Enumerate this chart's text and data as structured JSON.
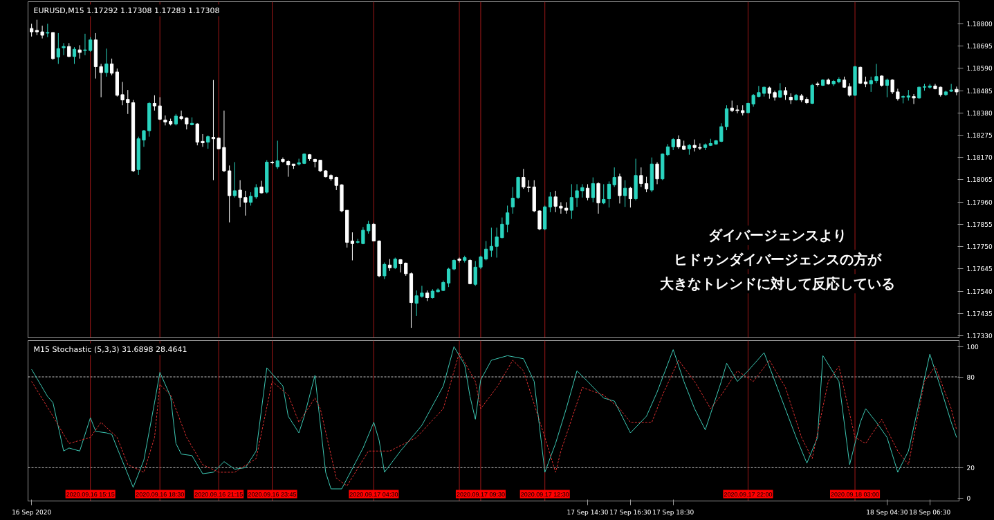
{
  "chart_data": [
    {
      "type": "candlestick",
      "title": "EURUSD,M15  1.17292 1.17308 1.17283 1.17308",
      "x": [
        "2020-09-16T12:30",
        "2020-09-16T12:45",
        "2020-09-16T13:00",
        "2020-09-16T13:15",
        "2020-09-16T13:30",
        "2020-09-16T13:45",
        "2020-09-16T14:00",
        "2020-09-16T14:15",
        "2020-09-16T14:30",
        "2020-09-16T14:45",
        "2020-09-16T15:00",
        "2020-09-16T15:15",
        "2020-09-16T15:30",
        "2020-09-16T15:45",
        "2020-09-16T16:00",
        "2020-09-16T16:15",
        "2020-09-16T16:30",
        "2020-09-16T16:45",
        "2020-09-16T17:00",
        "2020-09-16T17:15",
        "2020-09-16T17:30",
        "2020-09-16T17:45",
        "2020-09-16T18:00",
        "2020-09-16T18:15",
        "2020-09-16T18:30",
        "2020-09-16T18:45",
        "2020-09-16T19:00",
        "2020-09-16T19:15",
        "2020-09-16T19:30",
        "2020-09-16T19:45",
        "2020-09-16T20:00",
        "2020-09-16T20:15",
        "2020-09-16T20:30",
        "2020-09-16T20:45",
        "2020-09-16T21:00",
        "2020-09-16T21:15",
        "2020-09-16T21:30",
        "2020-09-16T21:45",
        "2020-09-16T22:00",
        "2020-09-16T22:15",
        "2020-09-16T22:30",
        "2020-09-16T22:45",
        "2020-09-16T23:00",
        "2020-09-16T23:15",
        "2020-09-16T23:30",
        "2020-09-16T23:45",
        "2020-09-17T00:00",
        "2020-09-17T00:15",
        "2020-09-17T00:30",
        "2020-09-17T00:45",
        "2020-09-17T01:00",
        "2020-09-17T01:15",
        "2020-09-17T01:30",
        "2020-09-17T01:45",
        "2020-09-17T02:00",
        "2020-09-17T02:15",
        "2020-09-17T02:30",
        "2020-09-17T02:45",
        "2020-09-17T03:00",
        "2020-09-17T03:15",
        "2020-09-17T03:30",
        "2020-09-17T03:45",
        "2020-09-17T04:00",
        "2020-09-17T04:15",
        "2020-09-17T04:30",
        "2020-09-17T04:45",
        "2020-09-17T05:00",
        "2020-09-17T05:15",
        "2020-09-17T05:30",
        "2020-09-17T05:45",
        "2020-09-17T06:00",
        "2020-09-17T06:15",
        "2020-09-17T06:30",
        "2020-09-17T06:45",
        "2020-09-17T07:00",
        "2020-09-17T07:15",
        "2020-09-17T07:30",
        "2020-09-17T07:45",
        "2020-09-17T08:00",
        "2020-09-17T08:15",
        "2020-09-17T08:30",
        "2020-09-17T08:45",
        "2020-09-17T09:00",
        "2020-09-17T09:15",
        "2020-09-17T09:30",
        "2020-09-17T09:45",
        "2020-09-17T10:00",
        "2020-09-17T10:15",
        "2020-09-17T10:30",
        "2020-09-17T10:45",
        "2020-09-17T11:00",
        "2020-09-17T11:15",
        "2020-09-17T11:30",
        "2020-09-17T11:45",
        "2020-09-17T12:00",
        "2020-09-17T12:15",
        "2020-09-17T12:30",
        "2020-09-17T12:45",
        "2020-09-17T13:00",
        "2020-09-17T13:15",
        "2020-09-17T13:30",
        "2020-09-17T13:45",
        "2020-09-17T14:00",
        "2020-09-17T14:15",
        "2020-09-17T14:30",
        "2020-09-17T14:45",
        "2020-09-17T15:00",
        "2020-09-17T15:15",
        "2020-09-17T15:30",
        "2020-09-17T15:45",
        "2020-09-17T16:00",
        "2020-09-17T16:15",
        "2020-09-17T16:30",
        "2020-09-17T16:45",
        "2020-09-17T17:00",
        "2020-09-17T17:15",
        "2020-09-17T17:30",
        "2020-09-17T17:45",
        "2020-09-17T18:00",
        "2020-09-17T18:15",
        "2020-09-17T18:30",
        "2020-09-17T18:45",
        "2020-09-17T19:00",
        "2020-09-17T19:15",
        "2020-09-17T19:30",
        "2020-09-17T19:45",
        "2020-09-17T20:00",
        "2020-09-17T20:15",
        "2020-09-17T20:30",
        "2020-09-17T20:45",
        "2020-09-17T21:00",
        "2020-09-17T21:15",
        "2020-09-17T21:30",
        "2020-09-17T21:45",
        "2020-09-17T22:00",
        "2020-09-17T22:15",
        "2020-09-17T22:30",
        "2020-09-17T22:45",
        "2020-09-17T23:00",
        "2020-09-17T23:15",
        "2020-09-17T23:30",
        "2020-09-17T23:45",
        "2020-09-18T00:00",
        "2020-09-18T00:15",
        "2020-09-18T00:30",
        "2020-09-18T00:45",
        "2020-09-18T01:00",
        "2020-09-18T01:15",
        "2020-09-18T01:30",
        "2020-09-18T01:45",
        "2020-09-18T02:00",
        "2020-09-18T02:15",
        "2020-09-18T02:30",
        "2020-09-18T02:45",
        "2020-09-18T03:00",
        "2020-09-18T03:15",
        "2020-09-18T03:30",
        "2020-09-18T03:45",
        "2020-09-18T04:00",
        "2020-09-18T04:15",
        "2020-09-18T04:30",
        "2020-09-18T04:45",
        "2020-09-18T05:00",
        "2020-09-18T05:15",
        "2020-09-18T05:30",
        "2020-09-18T05:45",
        "2020-09-18T06:00",
        "2020-09-18T06:15",
        "2020-09-18T06:30",
        "2020-09-18T06:45",
        "2020-09-18T07:00",
        "2020-09-18T07:15",
        "2020-09-18T07:30",
        "2020-09-18T07:45"
      ],
      "ohlc": [
        [
          1.18778,
          1.188,
          1.1874,
          1.18762
        ],
        [
          1.18769,
          1.18819,
          1.18746,
          1.18762
        ],
        [
          1.18762,
          1.18791,
          1.18731,
          1.18746
        ],
        [
          1.18756,
          1.188,
          1.18737,
          1.18759
        ],
        [
          1.18759,
          1.18759,
          1.1863,
          1.18636
        ],
        [
          1.18643,
          1.18756,
          1.18611,
          1.18683
        ],
        [
          1.18687,
          1.18709,
          1.18652,
          1.18693
        ],
        [
          1.18693,
          1.18709,
          1.18643,
          1.18646
        ],
        [
          1.18646,
          1.1869,
          1.18611,
          1.1868
        ],
        [
          1.18677,
          1.18699,
          1.18636,
          1.18665
        ],
        [
          1.18674,
          1.18753,
          1.18652,
          1.18677
        ],
        [
          1.18674,
          1.18737,
          1.18668,
          1.18724
        ],
        [
          1.18724,
          1.18756,
          1.18542,
          1.18598
        ],
        [
          1.18598,
          1.18611,
          1.18454,
          1.1857
        ],
        [
          1.1857,
          1.18683,
          1.18551,
          1.18611
        ],
        [
          1.18611,
          1.18636,
          1.18557,
          1.18567
        ],
        [
          1.18573,
          1.18589,
          1.18457,
          1.18463
        ],
        [
          1.18466,
          1.18526,
          1.18416,
          1.18441
        ],
        [
          1.18444,
          1.18488,
          1.18375,
          1.18428
        ],
        [
          1.18428,
          1.18441,
          1.18101,
          1.18107
        ],
        [
          1.18113,
          1.18268,
          1.18088,
          1.18258
        ],
        [
          1.18252,
          1.18299,
          1.1822,
          1.18296
        ],
        [
          1.18296,
          1.18431,
          1.18268,
          1.18425
        ],
        [
          1.18425,
          1.18463,
          1.18391,
          1.18413
        ],
        [
          1.18413,
          1.18454,
          1.18346,
          1.1835
        ],
        [
          1.18346,
          1.18368,
          1.18321,
          1.18337
        ],
        [
          1.1834,
          1.18353,
          1.18321,
          1.18328
        ],
        [
          1.18328,
          1.18375,
          1.18321,
          1.18365
        ],
        [
          1.18362,
          1.18391,
          1.18346,
          1.18353
        ],
        [
          1.18356,
          1.18359,
          1.18302,
          1.18328
        ],
        [
          1.18324,
          1.18359,
          1.18321,
          1.18331
        ],
        [
          1.18328,
          1.18331,
          1.18227,
          1.18242
        ],
        [
          1.18246,
          1.1828,
          1.1822,
          1.18239
        ],
        [
          1.18242,
          1.18274,
          1.18211,
          1.18268
        ],
        [
          1.18265,
          1.18535,
          1.18063,
          1.18258
        ],
        [
          1.18261,
          1.18265,
          1.18208,
          1.18211
        ],
        [
          1.18217,
          1.18391,
          1.18101,
          1.18107
        ],
        [
          1.18107,
          1.18132,
          1.17864,
          1.1799
        ],
        [
          1.1799,
          1.18148,
          1.17981,
          1.18013
        ],
        [
          1.18016,
          1.18063,
          1.17937,
          1.17981
        ],
        [
          1.17981,
          1.18013,
          1.17896,
          1.17959
        ],
        [
          1.17959,
          1.18006,
          1.17943,
          1.17987
        ],
        [
          1.17984,
          1.18044,
          1.17975,
          1.18028
        ],
        [
          1.18031,
          1.1806,
          1.18,
          1.18003
        ],
        [
          1.18006,
          1.18157,
          1.18,
          1.18148
        ],
        [
          1.18148,
          1.18154,
          1.18139,
          1.18145
        ],
        [
          1.18126,
          1.18249,
          1.18116,
          1.18154
        ],
        [
          1.18161,
          1.1817,
          1.18145,
          1.18151
        ],
        [
          1.18151,
          1.18157,
          1.18079,
          1.18135
        ],
        [
          1.18139,
          1.18139,
          1.18116,
          1.18132
        ],
        [
          1.18139,
          1.18164,
          1.18132,
          1.18145
        ],
        [
          1.18142,
          1.18189,
          1.18139,
          1.18186
        ],
        [
          1.18183,
          1.18186,
          1.18154,
          1.18164
        ],
        [
          1.18161,
          1.18164,
          1.18123,
          1.18151
        ],
        [
          1.18157,
          1.18157,
          1.18101,
          1.18107
        ],
        [
          1.18107,
          1.1811,
          1.18076,
          1.18079
        ],
        [
          1.18085,
          1.18091,
          1.1806,
          1.18069
        ],
        [
          1.18076,
          1.18079,
          1.18016,
          1.18038
        ],
        [
          1.18041,
          1.18044,
          1.17912,
          1.17918
        ],
        [
          1.17921,
          1.17921,
          1.17745,
          1.1777
        ],
        [
          1.17776,
          1.17817,
          1.17685,
          1.17764
        ],
        [
          1.1777,
          1.17786,
          1.17764,
          1.17773
        ],
        [
          1.17764,
          1.17842,
          1.17761,
          1.17827
        ],
        [
          1.17824,
          1.17871,
          1.17811,
          1.17855
        ],
        [
          1.17855,
          1.17861,
          1.17776,
          1.17776
        ],
        [
          1.17776,
          1.17779,
          1.17606,
          1.17612
        ],
        [
          1.17612,
          1.17675,
          1.17597,
          1.17666
        ],
        [
          1.17663,
          1.17691,
          1.17635,
          1.1765
        ],
        [
          1.1765,
          1.17698,
          1.17644,
          1.17691
        ],
        [
          1.17688,
          1.17691,
          1.17628,
          1.17669
        ],
        [
          1.17672,
          1.17675,
          1.17612,
          1.17622
        ],
        [
          1.17622,
          1.17628,
          1.17367,
          1.17486
        ],
        [
          1.17483,
          1.17543,
          1.17423,
          1.17518
        ],
        [
          1.17515,
          1.17565,
          1.17509,
          1.17531
        ],
        [
          1.17531,
          1.17543,
          1.17493,
          1.17509
        ],
        [
          1.17509,
          1.17549,
          1.17505,
          1.1754
        ],
        [
          1.17537,
          1.17553,
          1.17534,
          1.17546
        ],
        [
          1.17543,
          1.1759,
          1.1754,
          1.17581
        ],
        [
          1.17578,
          1.1765,
          1.17559,
          1.17644
        ],
        [
          1.17644,
          1.17691,
          1.17638,
          1.17685
        ],
        [
          1.17691,
          1.17698,
          1.17675,
          1.17685
        ],
        [
          1.17685,
          1.17707,
          1.17675,
          1.17698
        ],
        [
          1.17685,
          1.17691,
          1.17572,
          1.17575
        ],
        [
          1.17572,
          1.17682,
          1.17565,
          1.17653
        ],
        [
          1.17653,
          1.17707,
          1.17644,
          1.17701
        ],
        [
          1.17691,
          1.17776,
          1.17685,
          1.17738
        ],
        [
          1.17732,
          1.17839,
          1.17701,
          1.17751
        ],
        [
          1.17751,
          1.17839,
          1.17698,
          1.17795
        ],
        [
          1.17792,
          1.17887,
          1.17789,
          1.17855
        ],
        [
          1.17855,
          1.17943,
          1.17817,
          1.17909
        ],
        [
          1.17937,
          1.18031,
          1.17905,
          1.17978
        ],
        [
          1.17981,
          1.18079,
          1.17975,
          1.18076
        ],
        [
          1.18076,
          1.18116,
          1.18022,
          1.18031
        ],
        [
          1.18031,
          1.18063,
          1.18006,
          1.18028
        ],
        [
          1.18031,
          1.18063,
          1.17912,
          1.17918
        ],
        [
          1.17918,
          1.17921,
          1.17827,
          1.17833
        ],
        [
          1.17833,
          1.17943,
          1.17827,
          1.17937
        ],
        [
          1.17937,
          1.18006,
          1.17912,
          1.17984
        ],
        [
          1.17984,
          1.18013,
          1.17912,
          1.1794
        ],
        [
          1.1794,
          1.17959,
          1.17905,
          1.17931
        ],
        [
          1.17931,
          1.17959,
          1.17905,
          1.17921
        ],
        [
          1.17921,
          1.18044,
          1.1788,
          1.17981
        ],
        [
          1.17981,
          1.18044,
          1.17937,
          1.18013
        ],
        [
          1.18013,
          1.18044,
          1.17981,
          1.18028
        ],
        [
          1.18025,
          1.18044,
          1.17968,
          1.17981
        ],
        [
          1.17981,
          1.18076,
          1.17959,
          1.18047
        ],
        [
          1.18047,
          1.18053,
          1.17905,
          1.17956
        ],
        [
          1.17956,
          1.18044,
          1.1795,
          1.17972
        ],
        [
          1.17975,
          1.18057,
          1.17934,
          1.18044
        ],
        [
          1.18041,
          1.18123,
          1.18031,
          1.18076
        ],
        [
          1.18079,
          1.18094,
          1.17953,
          1.1799
        ],
        [
          1.1799,
          1.18063,
          1.17937,
          1.18025
        ],
        [
          1.18025,
          1.18031,
          1.17934,
          1.17975
        ],
        [
          1.17975,
          1.18164,
          1.17968,
          1.18085
        ],
        [
          1.18085,
          1.18123,
          1.18031,
          1.18047
        ],
        [
          1.18047,
          1.18079,
          1.18006,
          1.18022
        ],
        [
          1.18016,
          1.1817,
          1.18006,
          1.18139
        ],
        [
          1.18139,
          1.18148,
          1.18044,
          1.18069
        ],
        [
          1.18069,
          1.18189,
          1.18063,
          1.18186
        ],
        [
          1.18183,
          1.18233,
          1.18176,
          1.1822
        ],
        [
          1.1822,
          1.18261,
          1.18205,
          1.18255
        ],
        [
          1.18255,
          1.18274,
          1.18211,
          1.1822
        ],
        [
          1.18224,
          1.18249,
          1.18205,
          1.18208
        ],
        [
          1.18211,
          1.18233,
          1.18183,
          1.18227
        ],
        [
          1.18227,
          1.18255,
          1.18198,
          1.18217
        ],
        [
          1.18217,
          1.18236,
          1.18205,
          1.18214
        ],
        [
          1.18217,
          1.18236,
          1.18205,
          1.1823
        ],
        [
          1.18227,
          1.18258,
          1.18224,
          1.18236
        ],
        [
          1.18233,
          1.18252,
          1.1823,
          1.18249
        ],
        [
          1.18246,
          1.18331,
          1.18242,
          1.18315
        ],
        [
          1.18315,
          1.18416,
          1.18299,
          1.184
        ],
        [
          1.18403,
          1.18438,
          1.18384,
          1.18391
        ],
        [
          1.18394,
          1.18416,
          1.18378,
          1.18391
        ],
        [
          1.18391,
          1.18416,
          1.18368,
          1.18381
        ],
        [
          1.18381,
          1.18428,
          1.18378,
          1.18425
        ],
        [
          1.18422,
          1.18469,
          1.18409,
          1.18463
        ],
        [
          1.18457,
          1.18507,
          1.18454,
          1.18476
        ],
        [
          1.18472,
          1.18504,
          1.18457,
          1.18501
        ],
        [
          1.18498,
          1.18504,
          1.18447,
          1.18472
        ],
        [
          1.18476,
          1.18485,
          1.18438,
          1.18454
        ],
        [
          1.18454,
          1.1852,
          1.1845,
          1.18485
        ],
        [
          1.18485,
          1.18501,
          1.18441,
          1.18466
        ],
        [
          1.18454,
          1.18472,
          1.18422,
          1.18441
        ],
        [
          1.18441,
          1.18469,
          1.18438,
          1.18463
        ],
        [
          1.1846,
          1.18469,
          1.18431,
          1.18441
        ],
        [
          1.18444,
          1.18454,
          1.18422,
          1.18428
        ],
        [
          1.18425,
          1.18517,
          1.18422,
          1.1851
        ],
        [
          1.18517,
          1.18526,
          1.18504,
          1.18513
        ],
        [
          1.1851,
          1.18539,
          1.18507,
          1.18535
        ],
        [
          1.18535,
          1.18542,
          1.18513,
          1.18517
        ],
        [
          1.18517,
          1.18535,
          1.18507,
          1.18529
        ],
        [
          1.18526,
          1.18548,
          1.1852,
          1.18539
        ],
        [
          1.18535,
          1.18551,
          1.18498,
          1.18501
        ],
        [
          1.18504,
          1.1852,
          1.18457,
          1.18463
        ],
        [
          1.18463,
          1.18602,
          1.1846,
          1.18598
        ],
        [
          1.18595,
          1.18598,
          1.18517,
          1.1852
        ],
        [
          1.18526,
          1.18551,
          1.18501,
          1.18517
        ],
        [
          1.18517,
          1.18551,
          1.18479,
          1.18532
        ],
        [
          1.18532,
          1.18611,
          1.1852,
          1.18551
        ],
        [
          1.18554,
          1.18557,
          1.18504,
          1.1851
        ],
        [
          1.1851,
          1.18542,
          1.18454,
          1.18535
        ],
        [
          1.18535,
          1.18539,
          1.18469,
          1.18479
        ],
        [
          1.18479,
          1.18494,
          1.18438,
          1.18447
        ],
        [
          1.18454,
          1.18463,
          1.18425,
          1.18457
        ],
        [
          1.18454,
          1.18488,
          1.18438,
          1.1846
        ],
        [
          1.18457,
          1.18469,
          1.18422,
          1.1845
        ],
        [
          1.1845,
          1.18504,
          1.18447,
          1.18501
        ],
        [
          1.18501,
          1.18517,
          1.18485,
          1.18504
        ],
        [
          1.18501,
          1.18517,
          1.18494,
          1.18507
        ],
        [
          1.18507,
          1.18517,
          1.18491,
          1.18494
        ],
        [
          1.18501,
          1.18504,
          1.18457,
          1.18466
        ],
        [
          1.18466,
          1.18485,
          1.1846,
          1.18479
        ],
        [
          1.18482,
          1.18517,
          1.18479,
          1.18488
        ],
        [
          1.18491,
          1.18504,
          1.18463,
          1.18479
        ]
      ],
      "colors": [
        "#ffffff",
        "#ffffff",
        "#ffffff",
        "#2ad4bf",
        "#ffffff",
        "#2ad4bf",
        "#2ad4bf",
        "#ffffff",
        "#2ad4bf",
        "#ffffff",
        "#2ad4bf",
        "#2ad4bf",
        "#ffffff",
        "#ffffff",
        "#2ad4bf",
        "#ffffff",
        "#ffffff",
        "#ffffff",
        "#ffffff",
        "#ffffff",
        "#2ad4bf",
        "#2ad4bf",
        "#2ad4bf",
        "#ffffff",
        "#ffffff",
        "#ffffff",
        "#ffffff",
        "#2ad4bf",
        "#ffffff",
        "#ffffff",
        "#2ad4bf",
        "#ffffff",
        "#ffffff",
        "#2ad4bf",
        "#ffffff",
        "#ffffff",
        "#ffffff",
        "#ffffff",
        "#2ad4bf",
        "#ffffff",
        "#ffffff",
        "#2ad4bf",
        "#2ad4bf",
        "#ffffff",
        "#2ad4bf",
        "#ffffff",
        "#2ad4bf",
        "#ffffff",
        "#ffffff",
        "#ffffff",
        "#2ad4bf",
        "#2ad4bf",
        "#ffffff",
        "#ffffff",
        "#ffffff",
        "#ffffff",
        "#ffffff",
        "#ffffff",
        "#ffffff",
        "#ffffff",
        "#ffffff",
        "#2ad4bf",
        "#2ad4bf",
        "#2ad4bf",
        "#ffffff",
        "#ffffff",
        "#2ad4bf",
        "#ffffff",
        "#2ad4bf",
        "#ffffff",
        "#ffffff",
        "#ffffff",
        "#2ad4bf",
        "#2ad4bf",
        "#ffffff",
        "#2ad4bf",
        "#2ad4bf",
        "#2ad4bf",
        "#2ad4bf",
        "#2ad4bf",
        "#ffffff",
        "#2ad4bf",
        "#ffffff",
        "#2ad4bf",
        "#2ad4bf",
        "#2ad4bf",
        "#2ad4bf",
        "#2ad4bf",
        "#2ad4bf",
        "#2ad4bf",
        "#2ad4bf",
        "#2ad4bf",
        "#ffffff",
        "#ffffff",
        "#ffffff",
        "#ffffff",
        "#2ad4bf",
        "#2ad4bf",
        "#ffffff",
        "#ffffff",
        "#ffffff",
        "#2ad4bf",
        "#2ad4bf",
        "#2ad4bf",
        "#ffffff",
        "#2ad4bf",
        "#ffffff",
        "#2ad4bf",
        "#2ad4bf",
        "#2ad4bf",
        "#ffffff",
        "#2ad4bf",
        "#ffffff",
        "#2ad4bf",
        "#ffffff",
        "#ffffff",
        "#2ad4bf",
        "#ffffff",
        "#2ad4bf",
        "#2ad4bf",
        "#2ad4bf",
        "#ffffff",
        "#ffffff",
        "#2ad4bf",
        "#ffffff",
        "#ffffff",
        "#2ad4bf",
        "#2ad4bf",
        "#2ad4bf",
        "#2ad4bf",
        "#2ad4bf",
        "#ffffff",
        "#ffffff",
        "#ffffff",
        "#2ad4bf",
        "#2ad4bf",
        "#2ad4bf",
        "#2ad4bf",
        "#ffffff",
        "#ffffff",
        "#2ad4bf",
        "#ffffff",
        "#ffffff",
        "#2ad4bf",
        "#ffffff",
        "#ffffff",
        "#2ad4bf",
        "#ffffff",
        "#2ad4bf",
        "#ffffff",
        "#2ad4bf",
        "#2ad4bf",
        "#ffffff",
        "#ffffff",
        "#2ad4bf",
        "#ffffff",
        "#ffffff",
        "#2ad4bf",
        "#2ad4bf",
        "#ffffff",
        "#2ad4bf",
        "#ffffff",
        "#ffffff",
        "#2ad4bf",
        "#2ad4bf",
        "#ffffff",
        "#2ad4bf",
        "#2ad4bf",
        "#2ad4bf",
        "#ffffff",
        "#ffffff",
        "#2ad4bf",
        "#2ad4bf",
        "#ffffff"
      ],
      "xlim": [
        "2020-09-16T12:20",
        "2020-09-18T07:52"
      ],
      "ylim": [
        1.1732,
        1.18904
      ],
      "yticks": [
        {
          "value": 1.188,
          "label": "1.18800"
        },
        {
          "value": 1.18695,
          "label": "1.18695"
        },
        {
          "value": 1.1859,
          "label": "1.18590"
        },
        {
          "value": 1.18485,
          "label": "1.18485"
        },
        {
          "value": 1.1838,
          "label": "1.18380"
        },
        {
          "value": 1.18275,
          "label": "1.18275"
        },
        {
          "value": 1.1817,
          "label": "1.18170"
        },
        {
          "value": 1.18065,
          "label": "1.18065"
        },
        {
          "value": 1.1796,
          "label": "1.17960"
        },
        {
          "value": 1.17855,
          "label": "1.17855"
        },
        {
          "value": 1.1775,
          "label": "1.17750"
        },
        {
          "value": 1.17645,
          "label": "1.17645"
        },
        {
          "value": 1.1754,
          "label": "1.17540"
        },
        {
          "value": 1.17435,
          "label": "1.17435"
        },
        {
          "value": 1.1733,
          "label": "1.17330"
        }
      ],
      "tick_labels": "y",
      "annotations": [
        "ダイバージェンスより",
        "ヒドゥンダイバージェンスの方が",
        "大きなトレンドに対して反応している"
      ],
      "ref_lines": [
        {
          "axis": "x",
          "value": "2020-09-16T15:15",
          "label": null,
          "color": "#a01818"
        },
        {
          "axis": "x",
          "value": "2020-09-16T18:30",
          "label": null,
          "color": "#a01818"
        },
        {
          "axis": "x",
          "value": "2020-09-16T21:15",
          "label": null,
          "color": "#a01818"
        },
        {
          "axis": "x",
          "value": "2020-09-16T23:45",
          "label": null,
          "color": "#a01818"
        },
        {
          "axis": "x",
          "value": "2020-09-17T04:30",
          "label": null,
          "color": "#a01818"
        },
        {
          "axis": "x",
          "value": "2020-09-17T08:30",
          "label": null,
          "color": "#a01818"
        },
        {
          "axis": "x",
          "value": "2020-09-17T09:30",
          "label": null,
          "color": "#a01818"
        },
        {
          "axis": "x",
          "value": "2020-09-17T12:30",
          "label": null,
          "color": "#a01818"
        },
        {
          "axis": "x",
          "value": "2020-09-17T22:00",
          "label": null,
          "color": "#a01818"
        },
        {
          "axis": "x",
          "value": "2020-09-18T03:00",
          "label": null,
          "color": "#a01818"
        }
      ]
    },
    {
      "type": "line",
      "title": "M15 Stochastic (5,3,3) 31.6898 28.4641",
      "series": [
        {
          "color": "#3cc8b4",
          "line_style": "solid",
          "x": [
            "2020-09-16T12:30",
            "2020-09-16T13:15",
            "2020-09-16T13:30",
            "2020-09-16T14:00",
            "2020-09-16T14:15",
            "2020-09-16T14:45",
            "2020-09-16T15:15",
            "2020-09-16T15:30",
            "2020-09-16T16:00",
            "2020-09-16T16:15",
            "2020-09-16T16:30",
            "2020-09-16T17:15",
            "2020-09-16T17:45",
            "2020-09-16T18:15",
            "2020-09-16T18:30",
            "2020-09-16T19:00",
            "2020-09-16T19:15",
            "2020-09-16T19:30",
            "2020-09-16T20:00",
            "2020-09-16T20:30",
            "2020-09-16T21:00",
            "2020-09-16T21:30",
            "2020-09-16T22:00",
            "2020-09-16T22:30",
            "2020-09-16T23:00",
            "2020-09-16T23:30",
            "2020-09-17T00:15",
            "2020-09-17T00:30",
            "2020-09-17T01:00",
            "2020-09-17T01:15",
            "2020-09-17T01:45",
            "2020-09-17T02:15",
            "2020-09-17T02:30",
            "2020-09-17T03:00",
            "2020-09-17T04:00",
            "2020-09-17T04:30",
            "2020-09-17T04:45",
            "2020-09-17T05:00",
            "2020-09-17T05:45",
            "2020-09-17T06:45",
            "2020-09-17T07:45",
            "2020-09-17T08:15",
            "2020-09-17T08:45",
            "2020-09-17T09:00",
            "2020-09-17T09:15",
            "2020-09-17T09:30",
            "2020-09-17T10:00",
            "2020-09-17T10:45",
            "2020-09-17T11:30",
            "2020-09-17T12:00",
            "2020-09-17T12:30",
            "2020-09-17T13:00",
            "2020-09-17T13:30",
            "2020-09-17T14:00",
            "2020-09-17T14:30",
            "2020-09-17T15:15",
            "2020-09-17T15:45",
            "2020-09-17T16:30",
            "2020-09-17T17:15",
            "2020-09-17T17:45",
            "2020-09-17T18:30",
            "2020-09-17T19:00",
            "2020-09-17T19:30",
            "2020-09-17T20:00",
            "2020-09-17T20:45",
            "2020-09-17T21:00",
            "2020-09-17T21:30",
            "2020-09-17T22:00",
            "2020-09-17T22:45",
            "2020-09-17T23:30",
            "2020-09-18T00:15",
            "2020-09-18T00:45",
            "2020-09-18T01:15",
            "2020-09-18T01:30",
            "2020-09-18T02:15",
            "2020-09-18T02:45",
            "2020-09-18T03:15",
            "2020-09-18T03:30",
            "2020-09-18T04:00",
            "2020-09-18T04:30",
            "2020-09-18T05:00",
            "2020-09-18T05:30",
            "2020-09-18T06:00",
            "2020-09-18T06:30",
            "2020-09-18T07:00",
            "2020-09-18T07:30",
            "2020-09-18T07:45"
          ],
          "values": [
            85,
            67,
            63,
            31,
            33,
            31,
            53,
            44,
            43,
            42,
            33,
            7,
            25,
            63,
            83,
            67,
            36,
            29,
            28,
            16,
            17,
            24,
            19,
            20,
            31,
            86,
            74,
            54,
            43,
            54,
            81,
            17,
            6,
            6,
            33,
            50,
            38,
            17,
            31,
            48,
            74,
            100,
            88,
            67,
            52,
            78,
            91,
            94,
            92,
            77,
            17,
            36,
            59,
            84,
            77,
            66,
            64,
            43,
            54,
            70,
            98,
            77,
            59,
            45,
            77,
            89,
            77,
            84,
            96,
            68,
            40,
            23,
            40,
            94,
            77,
            22,
            50,
            59,
            50,
            40,
            17,
            31,
            63,
            95,
            73,
            50,
            40
          ]
        },
        {
          "color": "#e03030",
          "line_style": "dashed",
          "x": [
            "2020-09-16T12:30",
            "2020-09-16T13:30",
            "2020-09-16T14:15",
            "2020-09-16T15:15",
            "2020-09-16T15:45",
            "2020-09-16T16:30",
            "2020-09-16T17:00",
            "2020-09-16T17:45",
            "2020-09-16T18:15",
            "2020-09-16T18:30",
            "2020-09-16T19:00",
            "2020-09-16T19:45",
            "2020-09-16T20:30",
            "2020-09-16T21:15",
            "2020-09-16T22:00",
            "2020-09-16T23:00",
            "2020-09-16T23:45",
            "2020-09-17T00:30",
            "2020-09-17T01:00",
            "2020-09-17T01:45",
            "2020-09-17T02:00",
            "2020-09-17T02:45",
            "2020-09-17T03:15",
            "2020-09-17T04:15",
            "2020-09-17T05:15",
            "2020-09-17T06:30",
            "2020-09-17T07:45",
            "2020-09-17T08:30",
            "2020-09-17T09:15",
            "2020-09-17T09:30",
            "2020-09-17T10:15",
            "2020-09-17T11:00",
            "2020-09-17T11:30",
            "2020-09-17T12:30",
            "2020-09-17T13:00",
            "2020-09-17T13:15",
            "2020-09-17T14:15",
            "2020-09-17T15:15",
            "2020-09-17T16:00",
            "2020-09-17T16:30",
            "2020-09-17T17:30",
            "2020-09-17T18:00",
            "2020-09-17T18:45",
            "2020-09-17T19:30",
            "2020-09-17T20:15",
            "2020-09-17T20:45",
            "2020-09-17T21:30",
            "2020-09-17T22:15",
            "2020-09-17T23:00",
            "2020-09-17T23:45",
            "2020-09-18T00:30",
            "2020-09-18T01:00",
            "2020-09-18T01:45",
            "2020-09-18T02:15",
            "2020-09-18T03:00",
            "2020-09-18T03:30",
            "2020-09-18T04:15",
            "2020-09-18T05:00",
            "2020-09-18T05:30",
            "2020-09-18T06:15",
            "2020-09-18T06:45",
            "2020-09-18T07:30",
            "2020-09-18T07:45"
          ],
          "values": [
            77,
            54,
            36,
            40,
            50,
            40,
            22,
            17,
            40,
            75,
            68,
            40,
            22,
            17,
            17,
            26,
            77,
            68,
            50,
            66,
            59,
            13,
            8,
            31,
            31,
            40,
            59,
            96,
            77,
            59,
            73,
            91,
            84,
            40,
            17,
            31,
            73,
            68,
            59,
            50,
            50,
            68,
            91,
            77,
            59,
            68,
            84,
            77,
            91,
            73,
            40,
            26,
            77,
            87,
            40,
            36,
            52,
            31,
            22,
            77,
            87,
            59,
            45
          ]
        }
      ],
      "xlim": [
        "2020-09-16T12:20",
        "2020-09-18T07:52"
      ],
      "ylim": [
        -2,
        104
      ],
      "yticks": [
        0,
        20,
        80,
        100
      ],
      "xticks": [
        {
          "value": "2020-09-16T12:30",
          "label": "16 Sep 2020"
        },
        {
          "value": "2020-09-17T14:30",
          "label": "17 Sep 14:30"
        },
        {
          "value": "2020-09-17T16:30",
          "label": "17 Sep 16:30"
        },
        {
          "value": "2020-09-17T18:30",
          "label": "17 Sep 18:30"
        },
        {
          "value": "2020-09-18T04:30",
          "label": "18 Sep 04:30"
        },
        {
          "value": "2020-09-18T06:30",
          "label": "18 Sep 06:30"
        }
      ],
      "ref_lines": [
        {
          "axis": "y",
          "value": 20,
          "label": null,
          "color": "#c8c8c8",
          "line_style": "dashed"
        },
        {
          "axis": "y",
          "value": 80,
          "label": null,
          "color": "#c8c8c8",
          "line_style": "dashed"
        },
        {
          "axis": "x",
          "value": "2020-09-16T15:15",
          "label": "2020.09.16 15:15",
          "color": "#a01818"
        },
        {
          "axis": "x",
          "value": "2020-09-16T18:30",
          "label": "2020.09.16 18:30",
          "color": "#a01818"
        },
        {
          "axis": "x",
          "value": "2020-09-16T21:15",
          "label": "2020.09.16 21:15",
          "color": "#a01818"
        },
        {
          "axis": "x",
          "value": "2020-09-16T23:45",
          "label": "2020.09.16 23:45",
          "color": "#a01818"
        },
        {
          "axis": "x",
          "value": "2020-09-17T04:30",
          "label": "2020.09.17 04:30",
          "color": "#a01818"
        },
        {
          "axis": "x",
          "value": "2020-09-17T08:30",
          "label": null,
          "color": "#a01818"
        },
        {
          "axis": "x",
          "value": "2020-09-17T09:30",
          "label": "2020.09.17 09:30",
          "color": "#a01818"
        },
        {
          "axis": "x",
          "value": "2020-09-17T12:30",
          "label": "2020.09.17 12:30",
          "color": "#a01818"
        },
        {
          "axis": "x",
          "value": "2020-09-17T22:00",
          "label": "2020.09.17 22:00",
          "color": "#a01818"
        },
        {
          "axis": "x",
          "value": "2020-09-18T03:00",
          "label": "2020.09.18 03:00",
          "color": "#a01818"
        }
      ]
    }
  ]
}
